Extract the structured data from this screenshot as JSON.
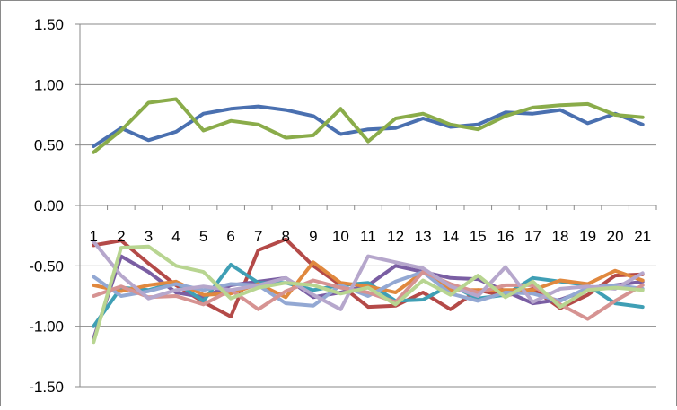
{
  "chart_data": {
    "type": "line",
    "title": "",
    "xlabel": "",
    "ylabel": "",
    "ylim": [
      -1.5,
      1.5
    ],
    "yticks": [
      "1.50",
      "1.00",
      "0.50",
      "0.00",
      "-0.50",
      "-1.00",
      "-1.50"
    ],
    "ytick_values": [
      1.5,
      1.0,
      0.5,
      0.0,
      -0.5,
      -1.0,
      -1.5
    ],
    "categories": [
      "1",
      "2",
      "3",
      "4",
      "5",
      "6",
      "7",
      "8",
      "9",
      "10",
      "11",
      "12",
      "13",
      "14",
      "15",
      "16",
      "17",
      "18",
      "19",
      "20",
      "21"
    ],
    "grid": "horizontal-major",
    "legend": "none",
    "series": [
      {
        "color": "#4a70b0",
        "values": [
          0.49,
          0.64,
          0.54,
          0.61,
          0.76,
          0.8,
          0.82,
          0.79,
          0.74,
          0.59,
          0.63,
          0.64,
          0.72,
          0.65,
          0.67,
          0.77,
          0.76,
          0.79,
          0.68,
          0.76,
          0.67
        ]
      },
      {
        "color": "#8aac4a",
        "values": [
          0.44,
          0.62,
          0.85,
          0.88,
          0.62,
          0.7,
          0.67,
          0.56,
          0.58,
          0.8,
          0.53,
          0.72,
          0.76,
          0.67,
          0.63,
          0.74,
          0.81,
          0.83,
          0.84,
          0.75,
          0.73
        ]
      },
      {
        "color": "#b44a48",
        "values": [
          -0.33,
          -0.29,
          -0.48,
          -0.66,
          -0.8,
          -0.92,
          -0.37,
          -0.28,
          -0.5,
          -0.66,
          -0.84,
          -0.83,
          -0.72,
          -0.86,
          -0.7,
          -0.75,
          -0.69,
          -0.85,
          -0.74,
          -0.58,
          -0.57
        ]
      },
      {
        "color": "#7a5ea3",
        "values": [
          -1.1,
          -0.42,
          -0.55,
          -0.72,
          -0.76,
          -0.66,
          -0.63,
          -0.6,
          -0.76,
          -0.72,
          -0.66,
          -0.5,
          -0.55,
          -0.6,
          -0.61,
          -0.71,
          -0.81,
          -0.78,
          -0.7,
          -0.66,
          -0.63
        ]
      },
      {
        "color": "#3f9fb5",
        "values": [
          -1.0,
          -0.68,
          -0.7,
          -0.64,
          -0.79,
          -0.49,
          -0.64,
          -0.64,
          -0.7,
          -0.66,
          -0.64,
          -0.79,
          -0.78,
          -0.66,
          -0.77,
          -0.74,
          -0.6,
          -0.63,
          -0.66,
          -0.81,
          -0.84
        ]
      },
      {
        "color": "#e0883e",
        "values": [
          -0.66,
          -0.71,
          -0.66,
          -0.63,
          -0.74,
          -0.73,
          -0.65,
          -0.76,
          -0.47,
          -0.64,
          -0.67,
          -0.72,
          -0.55,
          -0.7,
          -0.7,
          -0.7,
          -0.7,
          -0.62,
          -0.65,
          -0.54,
          -0.62
        ]
      },
      {
        "color": "#93a8d3",
        "values": [
          -0.59,
          -0.75,
          -0.71,
          -0.65,
          -0.7,
          -0.65,
          -0.66,
          -0.81,
          -0.83,
          -0.66,
          -0.75,
          -0.63,
          -0.55,
          -0.73,
          -0.79,
          -0.72,
          -0.73,
          -0.79,
          -0.68,
          -0.66,
          -0.69
        ]
      },
      {
        "color": "#d69392",
        "values": [
          -0.75,
          -0.67,
          -0.76,
          -0.75,
          -0.82,
          -0.7,
          -0.86,
          -0.71,
          -0.62,
          -0.68,
          -0.72,
          -0.8,
          -0.55,
          -0.65,
          -0.72,
          -0.66,
          -0.66,
          -0.82,
          -0.94,
          -0.79,
          -0.66
        ]
      },
      {
        "color": "#b6a7cc",
        "values": [
          -0.3,
          -0.58,
          -0.77,
          -0.7,
          -0.67,
          -0.7,
          -0.66,
          -0.6,
          -0.74,
          -0.86,
          -0.42,
          -0.47,
          -0.52,
          -0.67,
          -0.75,
          -0.51,
          -0.8,
          -0.69,
          -0.67,
          -0.69,
          -0.56
        ]
      },
      {
        "color": "#b8d591",
        "values": [
          -1.13,
          -0.35,
          -0.34,
          -0.5,
          -0.55,
          -0.77,
          -0.68,
          -0.64,
          -0.66,
          -0.73,
          -0.68,
          -0.82,
          -0.62,
          -0.74,
          -0.58,
          -0.76,
          -0.63,
          -0.84,
          -0.7,
          -0.68,
          -0.7
        ]
      }
    ]
  }
}
